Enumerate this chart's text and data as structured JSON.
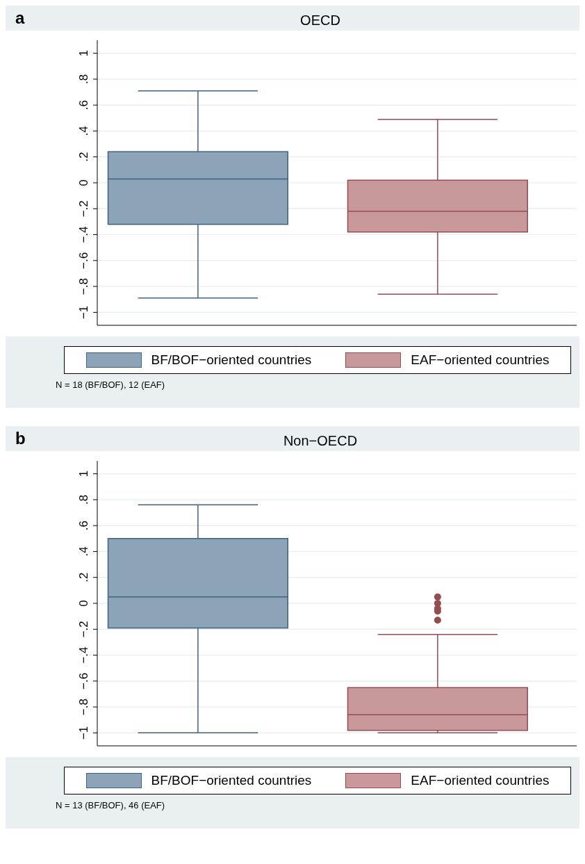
{
  "chart_data": [
    {
      "type": "box",
      "title": "OECD",
      "categories": [
        null
      ],
      "ylim": [
        -1.1,
        1.1
      ],
      "yticks": [
        {
          "value": -1,
          "label": "−1"
        },
        {
          "value": -0.8,
          "label": "−.8"
        },
        {
          "value": -0.6,
          "label": "−.6"
        },
        {
          "value": -0.4,
          "label": "−.4"
        },
        {
          "value": -0.2,
          "label": "−.2"
        },
        {
          "value": 0,
          "label": "0"
        },
        {
          "value": 0.2,
          "label": ".2"
        },
        {
          "value": 0.4,
          "label": ".4"
        },
        {
          "value": 0.6,
          "label": ".6"
        },
        {
          "value": 0.8,
          "label": ".8"
        },
        {
          "value": 1,
          "label": "1"
        }
      ],
      "series": [
        {
          "name": "BF/BOF−oriented countries",
          "color": "#8ca3b8",
          "boxes": [
            {
              "low": -0.89,
              "q1": -0.32,
              "median": 0.03,
              "q3": 0.24,
              "high": 0.71
            }
          ]
        },
        {
          "name": "EAF−oriented countries",
          "color": "#c8989b",
          "boxes": [
            {
              "low": -0.86,
              "q1": -0.38,
              "median": -0.22,
              "q3": 0.02,
              "high": 0.49
            }
          ]
        }
      ],
      "grid": "y",
      "legend": "bottom",
      "annotations": [
        "a",
        "N = 18 (BF/BOF), 12 (EAF)"
      ]
    },
    {
      "type": "box",
      "title": "Non−OECD",
      "categories": [
        null
      ],
      "ylim": [
        -1.1,
        1.1
      ],
      "yticks": [
        {
          "value": -1,
          "label": "−1"
        },
        {
          "value": -0.8,
          "label": "−.8"
        },
        {
          "value": -0.6,
          "label": "−.6"
        },
        {
          "value": -0.4,
          "label": "−.4"
        },
        {
          "value": -0.2,
          "label": "−.2"
        },
        {
          "value": 0,
          "label": "0"
        },
        {
          "value": 0.2,
          "label": ".2"
        },
        {
          "value": 0.4,
          "label": ".4"
        },
        {
          "value": 0.6,
          "label": ".6"
        },
        {
          "value": 0.8,
          "label": ".8"
        },
        {
          "value": 1,
          "label": "1"
        }
      ],
      "series": [
        {
          "name": "BF/BOF−oriented countries",
          "color": "#8ca3b8",
          "boxes": [
            {
              "low": -1.0,
              "q1": -0.19,
              "median": 0.05,
              "q3": 0.5,
              "high": 0.76
            }
          ]
        },
        {
          "name": "EAF−oriented countries",
          "color": "#c8989b",
          "boxes": [
            {
              "low": -1.0,
              "q1": -0.98,
              "median": -0.86,
              "q3": -0.65,
              "high": -0.24,
              "outliers": [
                0.05,
                0.0,
                -0.04,
                -0.06,
                -0.13
              ]
            }
          ]
        }
      ],
      "grid": "y",
      "legend": "bottom",
      "annotations": [
        "b",
        "N = 13 (BF/BOF), 46 (EAF)"
      ]
    }
  ]
}
